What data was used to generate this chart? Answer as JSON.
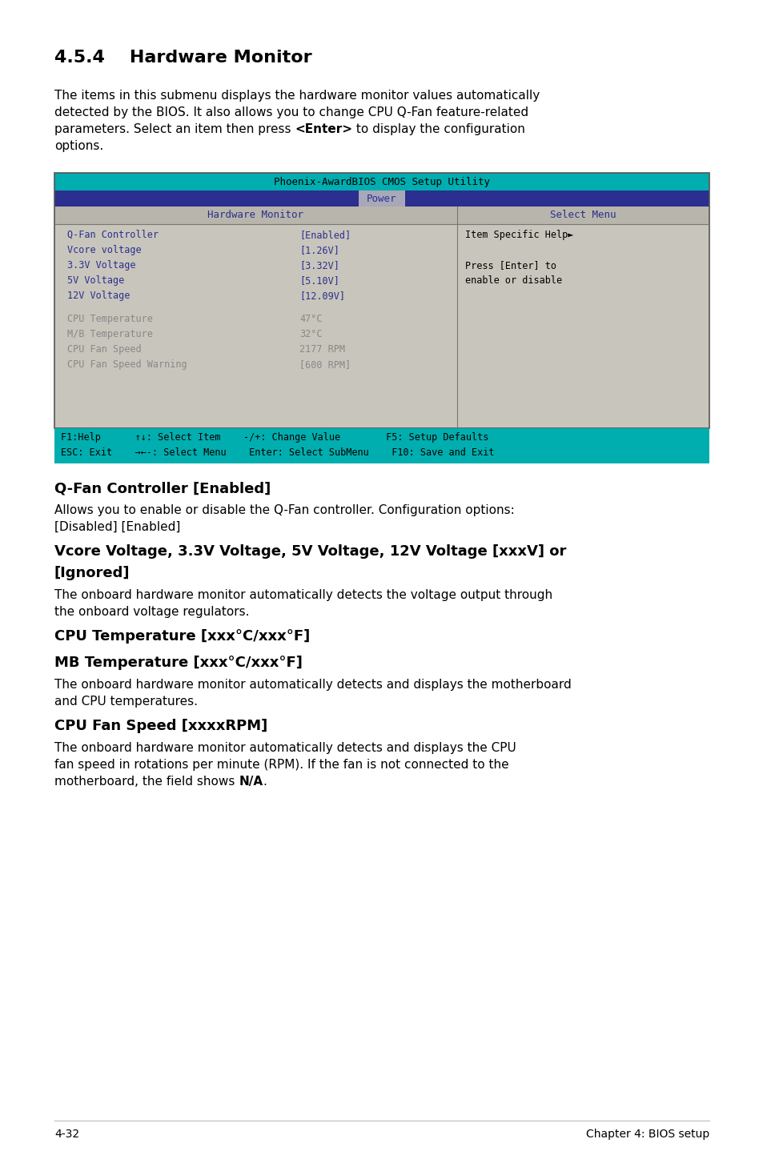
{
  "title_num": "4.5.4",
  "title_rest": "    Hardware Monitor",
  "intro_lines": [
    [
      "The items in this submenu displays the hardware monitor values automatically"
    ],
    [
      "detected by the BIOS. It also allows you to change CPU Q-Fan feature-related"
    ],
    [
      "parameters. Select an item then press ",
      "<Enter>",
      " to display the configuration"
    ],
    [
      "options."
    ]
  ],
  "bios_header": "Phoenix-AwardBIOS CMOS Setup Utility",
  "bios_tab": "Power",
  "col1_header": "Hardware Monitor",
  "col2_header": "Select Menu",
  "bios_rows_blue": [
    [
      "Q-Fan Controller",
      "[Enabled]"
    ],
    [
      "Vcore voltage",
      "[1.26V]"
    ],
    [
      "3.3V Voltage",
      "[3.32V]"
    ],
    [
      "5V Voltage",
      "[5.10V]"
    ],
    [
      "12V Voltage",
      "[12.09V]"
    ]
  ],
  "bios_rows_gray": [
    [
      "CPU Temperature",
      "47°C"
    ],
    [
      "M/B Temperature",
      "32°C"
    ],
    [
      "CPU Fan Speed",
      "2177 RPM"
    ],
    [
      "CPU Fan Speed Warning",
      "[600 RPM]"
    ]
  ],
  "help_lines": [
    "Item Specific Help►",
    "",
    "Press [Enter] to",
    "enable or disable"
  ],
  "footer_line1": "F1:Help      ↑↓: Select Item    -/+: Change Value        F5: Setup Defaults",
  "footer_line2": "ESC: Exit    →←-: Select Menu    Enter: Select SubMenu    F10: Save and Exit",
  "sections": [
    {
      "heading": "Q-Fan Controller [Enabled]",
      "body_lines": [
        [
          "Allows you to enable or disable the Q-Fan controller. Configuration options:"
        ],
        [
          "[Disabled] [Enabled]"
        ]
      ]
    },
    {
      "heading": "Vcore Voltage, 3.3V Voltage, 5V Voltage, 12V Voltage [xxxV] or\n[Ignored]",
      "body_lines": [
        [
          "The onboard hardware monitor automatically detects the voltage output through"
        ],
        [
          "the onboard voltage regulators."
        ]
      ]
    },
    {
      "heading": "CPU Temperature [xxx°C/xxx°F]",
      "body_lines": []
    },
    {
      "heading": "MB Temperature [xxx°C/xxx°F]",
      "body_lines": [
        [
          "The onboard hardware monitor automatically detects and displays the motherboard"
        ],
        [
          "and CPU temperatures."
        ]
      ]
    },
    {
      "heading": "CPU Fan Speed [xxxxRPM]",
      "body_lines": [
        [
          "The onboard hardware monitor automatically detects and displays the CPU"
        ],
        [
          "fan speed in rotations per minute (RPM). If the fan is not connected to the"
        ],
        [
          "motherboard, the field shows ",
          "N/A",
          "."
        ]
      ]
    }
  ],
  "footer_page": "4-32",
  "footer_chapter": "Chapter 4: BIOS setup",
  "color_cyan": "#00AEAF",
  "color_dark_blue": "#2B2F8F",
  "color_blue_text": "#2B2F8F",
  "color_gray_bg": "#C8C5BC",
  "color_col_header_bg": "#B8B5AC",
  "color_tab_bg": "#A8A8B8",
  "color_gray_text": "#888888",
  "color_white": "#FFFFFF",
  "color_black": "#000000"
}
